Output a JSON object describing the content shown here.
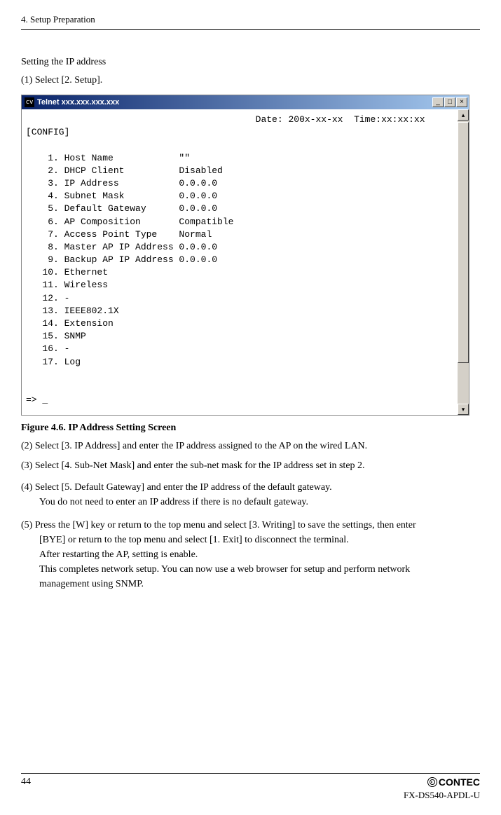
{
  "header": "4. Setup Preparation",
  "section_title": "Setting the IP address",
  "step1": "(1)  Select [2. Setup].",
  "terminal": {
    "titlebar_icon": "cv",
    "title": "Telnet xxx.xxx.xxx.xxx",
    "min_btn": "_",
    "max_btn": "□",
    "close_btn": "×",
    "scroll_up": "▴",
    "scroll_down": "▾",
    "content": "                                          Date: 200x-xx-xx  Time:xx:xx:xx\n[CONFIG]\n\n    1. Host Name            \"\"\n    2. DHCP Client          Disabled\n    3. IP Address           0.0.0.0\n    4. Subnet Mask          0.0.0.0\n    5. Default Gateway      0.0.0.0\n    6. AP Composition       Compatible\n    7. Access Point Type    Normal\n    8. Master AP IP Address 0.0.0.0\n    9. Backup AP IP Address 0.0.0.0\n   10. Ethernet\n   11. Wireless\n   12. -\n   13. IEEE802.1X\n   14. Extension\n   15. SNMP\n   16. -\n   17. Log\n\n\n=> _"
  },
  "figure_caption": "Figure 4.6.  IP Address Setting Screen",
  "step2": "(2)  Select [3. IP Address] and enter the IP address assigned to the AP on the wired LAN.",
  "step3": "(3)  Select [4. Sub-Net Mask] and enter the sub-net mask for the IP address set in step 2.",
  "step4_line1": "(4)  Select [5. Default Gateway] and enter the IP address of the default gateway.",
  "step4_line2": "You do not need to enter an IP address if there is no default gateway.",
  "step5_line1": "(5)  Press the [W] key or return to the top menu and select [3. Writing] to save the settings, then enter",
  "step5_line2": "[BYE] or return to the top menu and select [1. Exit] to disconnect the terminal.",
  "step5_line3": "After restarting the AP, setting is enable.",
  "step5_line4": "This completes network setup.  You can now use a web browser for setup and perform network",
  "step5_line5": "management using SNMP.",
  "footer": {
    "page_num": "44",
    "contec": "CONTEC",
    "model": "FX-DS540-APDL-U"
  }
}
